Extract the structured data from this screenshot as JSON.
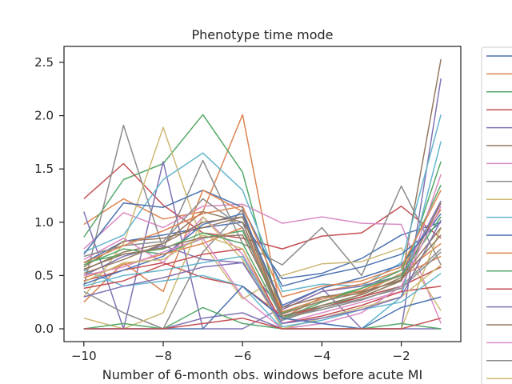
{
  "chart_data": {
    "type": "line",
    "title": "Phenotype time mode",
    "xlabel": "Number of 6-month obs. windows before acute MI",
    "ylabel": "",
    "xlim": [
      -10.5,
      -0.5
    ],
    "ylim": [
      -0.12,
      2.65
    ],
    "xticks": [
      -10,
      -8,
      -6,
      -4,
      -2
    ],
    "yticks": [
      0.0,
      0.5,
      1.0,
      1.5,
      2.0,
      2.5
    ],
    "ytick_labels": [
      "0.0",
      "0.5",
      "1.0",
      "1.5",
      "2.0",
      "2.5"
    ],
    "grid": false,
    "legend": {
      "placement": "right, outside, clipped",
      "visible_entries": 19
    },
    "x": [
      -10,
      -9,
      -8,
      -7,
      -6,
      -5,
      -4,
      -3,
      -2,
      -1
    ],
    "palette": [
      "#4c72b0",
      "#dd8452",
      "#55a868",
      "#c44e52",
      "#8172b3",
      "#937860",
      "#da8bc3",
      "#8c8c8c",
      "#ccb974",
      "#64b5cd"
    ],
    "series": [
      {
        "values": [
          0.62,
          0.82,
          0.88,
          0.95,
          1.0,
          0.47,
          0.52,
          0.66,
          0.88,
          1.0
        ]
      },
      {
        "values": [
          0.98,
          1.22,
          1.03,
          1.1,
          2.01,
          0.1,
          0.3,
          0.33,
          0.52,
          0.8
        ]
      },
      {
        "values": [
          0.86,
          1.4,
          1.55,
          2.01,
          1.47,
          0.08,
          0.22,
          0.3,
          0.45,
          1.57
        ]
      },
      {
        "values": [
          1.22,
          1.55,
          1.16,
          0.9,
          0.85,
          0.75,
          0.87,
          0.9,
          1.15,
          0.85
        ]
      },
      {
        "values": [
          1.1,
          0.0,
          1.57,
          0.0,
          0.0,
          0.2,
          0.38,
          0.0,
          0.0,
          2.35
        ]
      },
      {
        "values": [
          0.55,
          0.72,
          0.8,
          1.1,
          1.0,
          0.1,
          0.2,
          0.3,
          0.45,
          2.53
        ]
      },
      {
        "values": [
          0.75,
          1.09,
          0.95,
          1.15,
          1.17,
          0.99,
          1.05,
          0.99,
          0.98,
          0.05
        ]
      },
      {
        "values": [
          0.4,
          1.91,
          0.75,
          1.58,
          0.8,
          0.6,
          0.95,
          0.5,
          1.34,
          0.6
        ]
      },
      {
        "values": [
          0.3,
          0.8,
          1.89,
          0.8,
          0.28,
          0.5,
          0.61,
          0.63,
          0.76,
          0.17
        ]
      },
      {
        "values": [
          0.72,
          0.88,
          1.4,
          1.65,
          1.3,
          0.35,
          0.42,
          0.4,
          0.62,
          2.01
        ]
      },
      {
        "values": [
          0.7,
          1.18,
          1.14,
          1.3,
          1.14,
          0.4,
          0.5,
          0.58,
          0.7,
          1.0
        ]
      },
      {
        "values": [
          0.25,
          0.62,
          0.35,
          1.3,
          1.1,
          0.18,
          0.35,
          0.42,
          0.55,
          1.12
        ]
      },
      {
        "values": [
          0.6,
          0.75,
          0.7,
          0.85,
          0.92,
          0.15,
          0.28,
          0.38,
          0.55,
          1.35
        ]
      },
      {
        "values": [
          0.45,
          0.55,
          0.62,
          0.48,
          0.4,
          0.12,
          0.2,
          0.3,
          0.4,
          0.58
        ]
      },
      {
        "values": [
          0.5,
          0.68,
          0.78,
          0.65,
          0.62,
          0.18,
          0.35,
          0.4,
          0.5,
          1.2
        ]
      },
      {
        "values": [
          0.58,
          0.82,
          0.85,
          0.95,
          1.05,
          0.2,
          0.3,
          0.35,
          0.45,
          1.18
        ]
      },
      {
        "values": [
          0.65,
          0.85,
          0.62,
          1.05,
          0.7,
          0.05,
          0.15,
          0.25,
          0.35,
          1.45
        ]
      },
      {
        "values": [
          0.35,
          0.15,
          0.0,
          0.72,
          1.12,
          0.1,
          0.18,
          0.27,
          0.4,
          0.75
        ]
      },
      {
        "values": [
          0.1,
          0.0,
          0.15,
          1.05,
          0.65,
          0.0,
          0.0,
          0.0,
          0.0,
          0.95
        ]
      },
      {
        "values": [
          0.55,
          0.4,
          0.45,
          0.5,
          0.4,
          0.0,
          0.05,
          0.0,
          0.3,
          1.76
        ]
      },
      {
        "values": [
          0.42,
          0.55,
          0.68,
          0.98,
          1.08,
          0.22,
          0.38,
          0.48,
          0.6,
          1.08
        ]
      },
      {
        "values": [
          0.48,
          0.6,
          0.7,
          0.8,
          0.95,
          0.16,
          0.28,
          0.36,
          0.5,
          0.68
        ]
      },
      {
        "values": [
          0.62,
          0.7,
          0.75,
          0.9,
          0.8,
          0.1,
          0.25,
          0.38,
          0.5,
          1.05
        ]
      },
      {
        "values": [
          0.38,
          0.45,
          0.6,
          0.7,
          0.75,
          0.05,
          0.12,
          0.22,
          0.35,
          0.4
        ]
      },
      {
        "values": [
          0.0,
          0.0,
          0.0,
          0.1,
          0.15,
          0.0,
          0.0,
          0.0,
          0.0,
          0.0
        ]
      },
      {
        "values": [
          0.52,
          0.65,
          0.8,
          1.0,
          1.05,
          0.12,
          0.22,
          0.32,
          0.48,
          0.95
        ]
      },
      {
        "values": [
          0.5,
          0.58,
          0.72,
          0.85,
          0.3,
          0.0,
          0.05,
          0.15,
          0.4,
          1.15
        ]
      },
      {
        "values": [
          0.68,
          0.78,
          0.82,
          1.22,
          0.95,
          0.08,
          0.2,
          0.28,
          0.38,
          0.72
        ]
      },
      {
        "values": [
          0.44,
          0.62,
          0.65,
          0.88,
          0.75,
          0.0,
          0.1,
          0.2,
          0.3,
          0.6
        ]
      },
      {
        "values": [
          0.4,
          0.5,
          0.55,
          0.62,
          0.68,
          0.02,
          0.08,
          0.18,
          0.25,
          0.52
        ]
      },
      {
        "values": [
          0.0,
          0.0,
          0.0,
          0.0,
          0.4,
          0.1,
          0.05,
          0.0,
          0.2,
          0.3
        ]
      },
      {
        "values": [
          0.62,
          0.78,
          0.92,
          1.08,
          1.15,
          0.3,
          0.4,
          0.45,
          0.58,
          1.3
        ]
      },
      {
        "values": [
          0.0,
          0.05,
          0.0,
          0.2,
          0.05,
          0.0,
          0.0,
          0.0,
          0.05,
          0.0
        ]
      },
      {
        "values": [
          0.0,
          0.0,
          0.0,
          0.05,
          0.1,
          0.0,
          0.0,
          0.0,
          0.0,
          0.1
        ]
      },
      {
        "values": [
          0.3,
          0.4,
          0.48,
          0.58,
          0.62,
          0.05,
          0.1,
          0.18,
          0.3,
          1.02
        ]
      },
      {
        "values": [
          0.56,
          0.7,
          0.76,
          0.86,
          0.88,
          0.14,
          0.26,
          0.34,
          0.46,
          0.88
        ]
      }
    ]
  }
}
